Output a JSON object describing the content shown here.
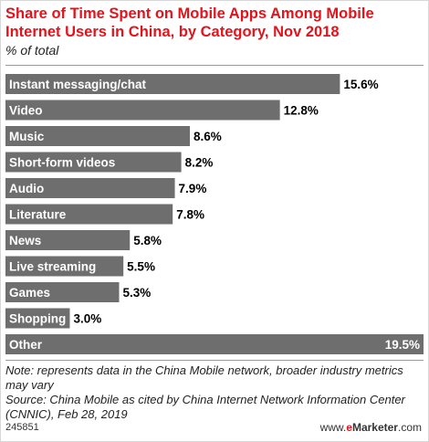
{
  "header": {
    "title": "Share of Time Spent on Mobile Apps Among Mobile Internet Users in China, by Category, Nov 2018",
    "subtitle": "% of total"
  },
  "chart_data": {
    "type": "bar",
    "orientation": "horizontal",
    "categories": [
      "Instant messaging/chat",
      "Video",
      "Music",
      "Short-form videos",
      "Audio",
      "Literature",
      "News",
      "Live streaming",
      "Games",
      "Shopping",
      "Other"
    ],
    "values": [
      15.6,
      12.8,
      8.6,
      8.2,
      7.9,
      7.8,
      5.8,
      5.5,
      5.3,
      3.0,
      19.5
    ],
    "value_labels": [
      "15.6%",
      "12.8%",
      "8.6%",
      "8.2%",
      "7.9%",
      "7.8%",
      "5.8%",
      "5.5%",
      "5.3%",
      "3.0%",
      "19.5%"
    ],
    "unit": "%",
    "title": "Share of Time Spent on Mobile Apps Among Mobile Internet Users in China, by Category, Nov 2018",
    "subtitle": "% of total",
    "xlabel": "",
    "ylabel": "",
    "xlim": [
      0,
      19.5
    ],
    "grid": false,
    "legend": "none",
    "bar_color": "#6e6e6e"
  },
  "footnote": {
    "note": "Note: represents data in the China Mobile network, broader industry metrics may vary",
    "source": "Source: China Mobile as cited by China Internet Network Information Center (CNNIC), Feb 28, 2019"
  },
  "footer": {
    "chart_id": "245851",
    "brand_prefix": "www.",
    "brand_e": "e",
    "brand_name": "Marketer",
    "brand_suffix": ".com"
  },
  "colors": {
    "title": "#e4131b",
    "bar": "#6e6e6e",
    "brand_accent": "#e4131b"
  }
}
